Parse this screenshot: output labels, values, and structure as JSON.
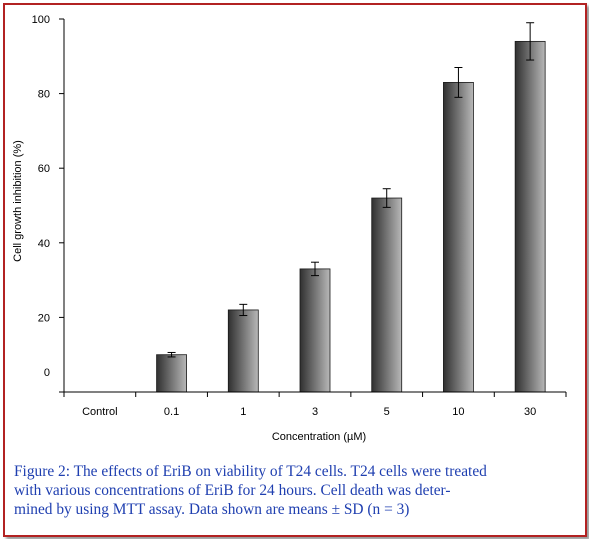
{
  "chart_data": {
    "type": "bar",
    "categories": [
      "Control",
      "0.1",
      "1",
      "3",
      "5",
      "10",
      "30"
    ],
    "values": [
      0,
      10,
      22,
      33,
      52,
      83,
      94
    ],
    "errors": [
      0,
      0.6,
      1.5,
      1.8,
      2.5,
      4,
      5
    ],
    "xlabel": "Concentration (µM)",
    "ylabel": "Cell growth inhibition (%)",
    "ylim": [
      0,
      100
    ],
    "yticks": [
      "0",
      "20",
      "40",
      "60",
      "80",
      "100"
    ],
    "grid": false,
    "colors": {
      "bar_dark": "#303030",
      "bar_light": "#b8b8b8"
    }
  },
  "caption": {
    "lines": [
      "Figure 2: The effects of EriB on viability of T24 cells. T24 cells were treated",
      "with various concentrations of EriB for 24 hours. Cell death was deter-",
      "mined by using MTT assay. Data shown are means ± SD (n = 3)"
    ]
  },
  "colors": {
    "frame_border": "#b22222",
    "caption_text": "#1f3fb0"
  }
}
